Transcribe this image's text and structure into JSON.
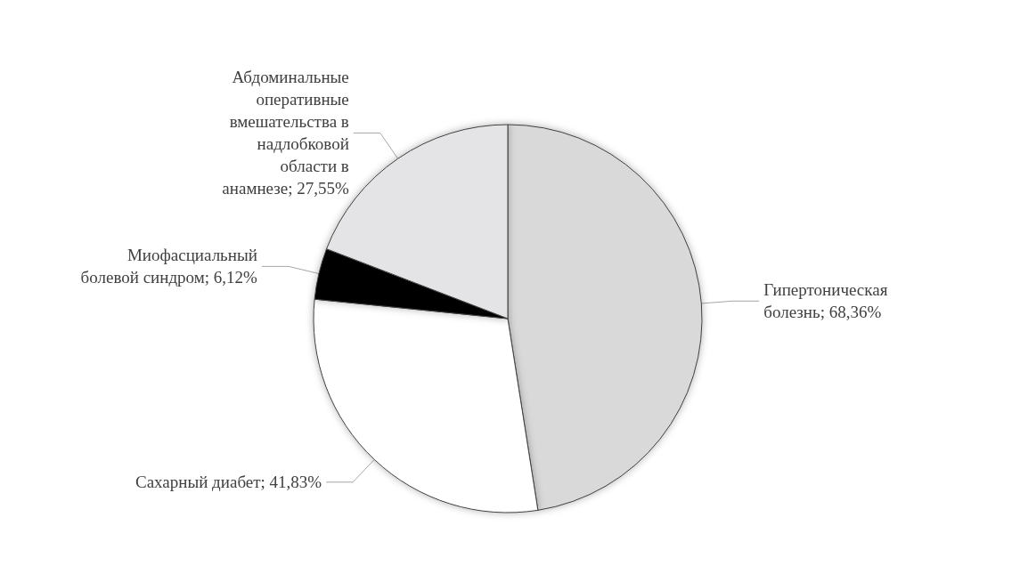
{
  "chart_data": {
    "type": "pie",
    "categories": [
      "Гипертоническая болезнь",
      "Сахарный диабет",
      "Миофасциальный болевой синдром",
      "Абдоминальные оперативные вмешательства в надлобковой области в анамнезе"
    ],
    "values": [
      68.36,
      41.83,
      6.12,
      27.55
    ],
    "value_labels": [
      "68,36%",
      "41,83%",
      "6,12%",
      "27,55%"
    ],
    "colors": [
      "#d9d9d9",
      "#ffffff",
      "#000000",
      "#e4e4e6"
    ],
    "legend": false
  }
}
